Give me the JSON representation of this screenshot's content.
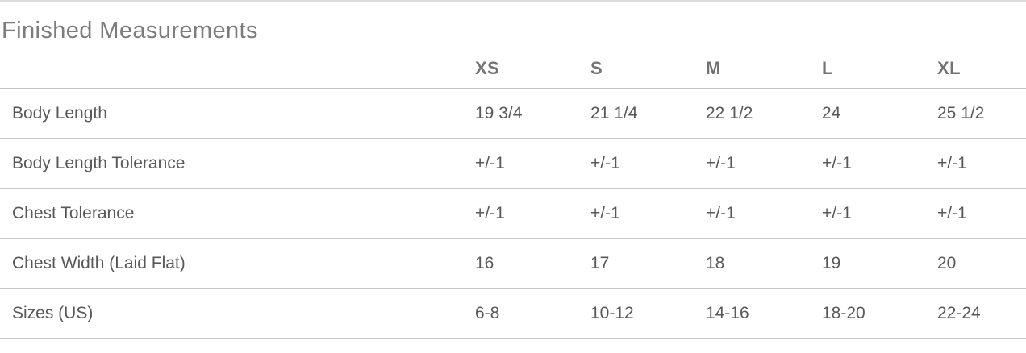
{
  "section": {
    "title": "Finished Measurements"
  },
  "table": {
    "columns": [
      "XS",
      "S",
      "M",
      "L",
      "XL"
    ],
    "rows": [
      {
        "label": "Body Length",
        "values": [
          "19 3/4",
          "21 1/4",
          "22 1/2",
          "24",
          "25 1/2"
        ]
      },
      {
        "label": "Body Length Tolerance",
        "values": [
          "+/-1",
          "+/-1",
          "+/-1",
          "+/-1",
          "+/-1"
        ]
      },
      {
        "label": "Chest Tolerance",
        "values": [
          "+/-1",
          "+/-1",
          "+/-1",
          "+/-1",
          "+/-1"
        ]
      },
      {
        "label": "Chest Width (Laid Flat)",
        "values": [
          "16",
          "17",
          "18",
          "19",
          "20"
        ]
      },
      {
        "label": "Sizes (US)",
        "values": [
          "6-8",
          "10-12",
          "14-16",
          "18-20",
          "22-24"
        ]
      }
    ]
  },
  "colors": {
    "top-rule": "#dcdcdc",
    "header-border": "#c2c2c2",
    "row-border": "#c8c8c8",
    "title-text": "#7b7c7e",
    "header-text": "#717376",
    "body-text": "#56585a",
    "background": "#ffffff"
  }
}
